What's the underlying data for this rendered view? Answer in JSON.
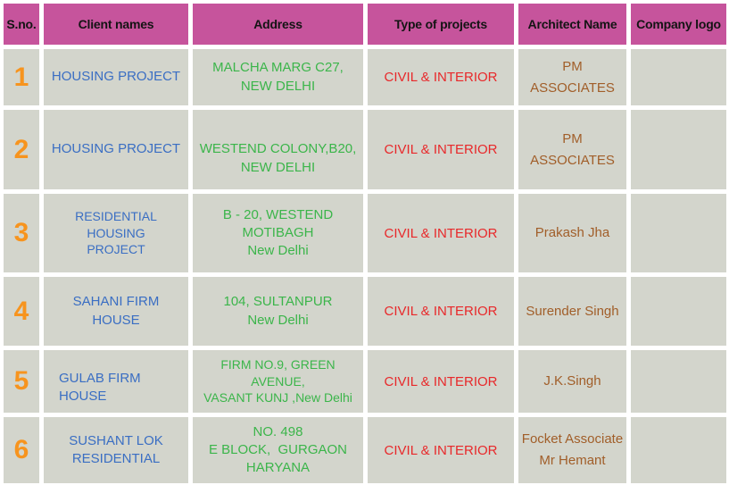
{
  "table": {
    "headers": [
      "S.no.",
      "Client names",
      "Address",
      "Type of projects",
      "Architect Name",
      "Company logo"
    ],
    "rows": [
      {
        "sno": "1",
        "client": "HOUSING PROJECT",
        "address": "MALCHA MARG C27,\nNEW DELHI",
        "type": "CIVIL & INTERIOR",
        "architect": "PM ASSOCIATES",
        "logo": ""
      },
      {
        "sno": "2",
        "client": "HOUSING PROJECT",
        "address": "WESTEND COLONY,B20,\nNEW DELHI",
        "type": "CIVIL & INTERIOR",
        "architect": "PM ASSOCIATES",
        "logo": ""
      },
      {
        "sno": "3",
        "client": "RESIDENTIAL HOUSING\nPROJECT",
        "address": "B - 20, WESTEND\nMOTIBAGH\nNew Delhi",
        "type": "CIVIL & INTERIOR",
        "architect": "Prakash Jha",
        "logo": ""
      },
      {
        "sno": "4",
        "client": "SAHANI FIRM\nHOUSE",
        "address": "104, SULTANPUR\nNew Delhi",
        "type": "CIVIL & INTERIOR",
        "architect": "Surender Singh",
        "logo": ""
      },
      {
        "sno": "5",
        "client": "GULAB FIRM\nHOUSE",
        "address": "FIRM NO.9, GREEN AVENUE,\nVASANT KUNJ ,New Delhi",
        "type": "CIVIL & INTERIOR",
        "architect": "J.K.Singh",
        "logo": ""
      },
      {
        "sno": "6",
        "client": "SUSHANT LOK\nRESIDENTIAL",
        "address": "NO. 498\nE BLOCK,  GURGAON\nHARYANA",
        "type": "CIVIL & INTERIOR",
        "architect": "Focket Associate\nMr Hemant",
        "logo": ""
      }
    ],
    "colors": {
      "header_bg": "#c6549c",
      "header_text": "#141414",
      "cell_bg": "#d3d5cc",
      "sno": "#f7941e",
      "client": "#3a6ec3",
      "address": "#3bb54a",
      "type": "#e8282a",
      "architect": "#a15e29"
    }
  }
}
